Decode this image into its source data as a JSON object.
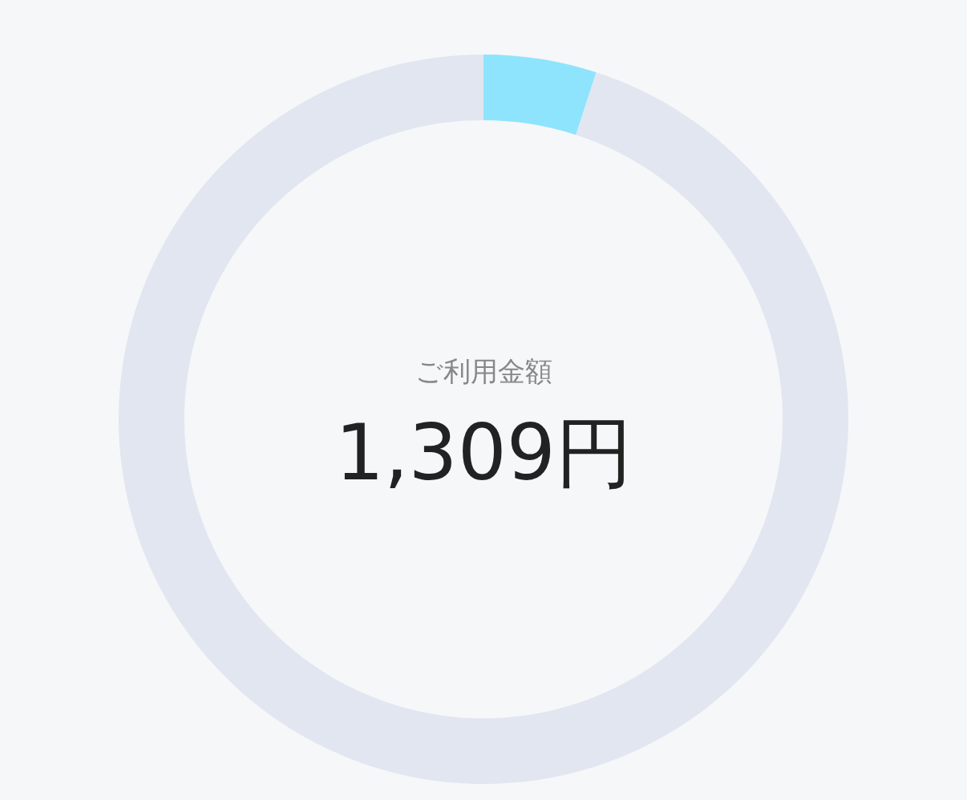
{
  "chart_data": {
    "type": "donut",
    "categories": [
      null,
      null
    ],
    "values": [
      5,
      95
    ],
    "colors": [
      "#8ee4fc",
      "#e1e6f0"
    ],
    "annotations": [
      "ご利用金額",
      "1,309円"
    ],
    "legend": false
  }
}
